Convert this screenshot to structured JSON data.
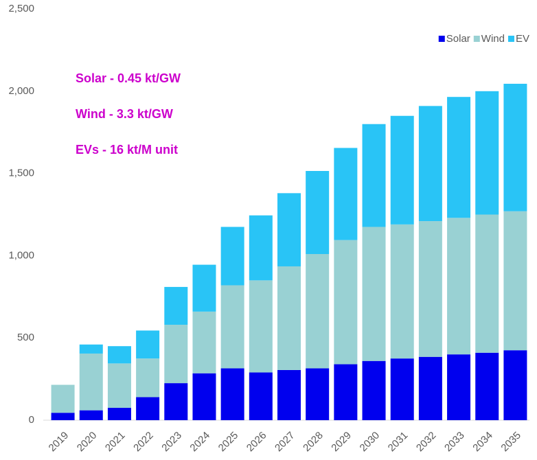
{
  "chart_data": {
    "type": "stacked_bar",
    "categories": [
      "2019",
      "2020",
      "2021",
      "2022",
      "2023",
      "2024",
      "2025",
      "2026",
      "2027",
      "2028",
      "2029",
      "2030",
      "2031",
      "2032",
      "2033",
      "2034",
      "2035"
    ],
    "series": [
      {
        "name": "Solar",
        "color": "#0000ee",
        "values": [
          45,
          60,
          75,
          140,
          225,
          285,
          315,
          290,
          305,
          315,
          340,
          360,
          375,
          385,
          400,
          410,
          425
        ]
      },
      {
        "name": "Wind",
        "color": "#99d1d3",
        "values": [
          170,
          345,
          270,
          235,
          355,
          375,
          505,
          560,
          630,
          695,
          755,
          815,
          815,
          825,
          830,
          840,
          845
        ]
      },
      {
        "name": "EV",
        "color": "#29c4f6",
        "values": [
          0,
          55,
          105,
          170,
          230,
          285,
          355,
          395,
          445,
          505,
          560,
          625,
          660,
          700,
          735,
          750,
          775
        ]
      }
    ],
    "ylim": [
      0,
      2500
    ],
    "yticks": [
      0,
      500,
      {
        "value": 1000,
        "label": "1,000"
      },
      {
        "value": 1500,
        "label": "1,500"
      },
      {
        "value": 2000,
        "label": "2,000"
      },
      {
        "value": 2500,
        "label": "2,500"
      }
    ],
    "annotations": [
      "Solar - 0.45 kt/GW",
      "Wind - 3.3 kt/GW",
      "EVs - 16 kt/M unit"
    ],
    "legend": "top-right",
    "grid": false
  }
}
